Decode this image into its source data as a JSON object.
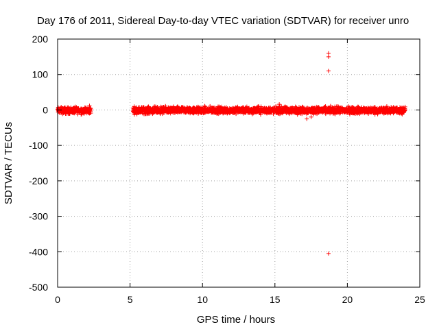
{
  "chart_data": {
    "type": "scatter",
    "title": "Day 176 of 2011, Sidereal Day-to-day VTEC variation (SDTVAR) for receiver unro",
    "xlabel": "GPS time / hours",
    "ylabel": "SDTVAR / TECUs",
    "xlim": [
      0,
      25
    ],
    "ylim": [
      -500,
      200
    ],
    "xticks": [
      0,
      5,
      10,
      15,
      20,
      25
    ],
    "yticks": [
      200,
      100,
      0,
      -100,
      -200,
      -300,
      -400,
      -500
    ],
    "grid": true,
    "marker": "+",
    "color": "#ff0000",
    "series": [
      {
        "dense_bands": [
          {
            "x_range": [
              0.0,
              2.3
            ],
            "y_range": [
              -15,
              12
            ]
          },
          {
            "x_range": [
              5.2,
              24.0
            ],
            "y_range": [
              -15,
              13
            ]
          }
        ],
        "points": [
          {
            "x": 2.2,
            "y": 12
          },
          {
            "x": 15.3,
            "y": 16
          },
          {
            "x": 17.2,
            "y": -25
          },
          {
            "x": 17.5,
            "y": -20
          },
          {
            "x": 18.7,
            "y": 160
          },
          {
            "x": 18.7,
            "y": 150
          },
          {
            "x": 18.7,
            "y": 110
          },
          {
            "x": 18.7,
            "y": -405
          }
        ]
      }
    ]
  }
}
